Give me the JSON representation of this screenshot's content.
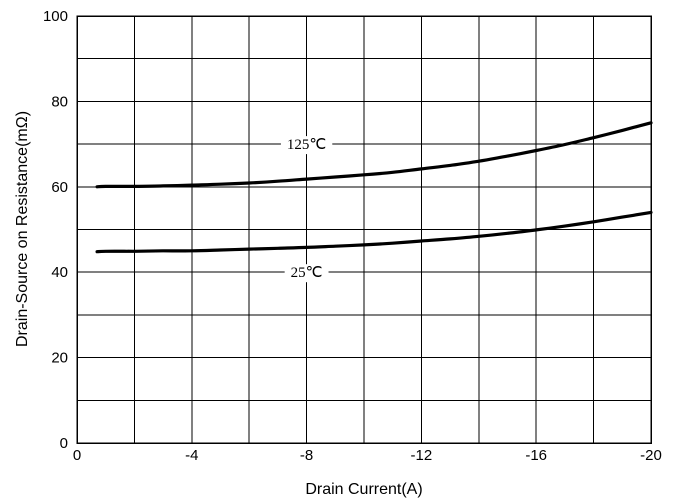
{
  "chart_data": {
    "type": "line",
    "xlabel": "Drain Current(A)",
    "ylabel": "Drain-Source on Resistance(mΩ)",
    "xlim": [
      0,
      -20
    ],
    "ylim": [
      0,
      100
    ],
    "x_ticks": [
      "0",
      "-4",
      "-8",
      "-12",
      "-16",
      "-20"
    ],
    "y_ticks": [
      "0",
      "20",
      "40",
      "60",
      "80",
      "100"
    ],
    "x_minor_step": 2,
    "y_minor_step": 10,
    "grid": true,
    "series": [
      {
        "name": "125℃",
        "x": [
          -0.7,
          -1,
          -2,
          -3,
          -4,
          -5,
          -6,
          -7,
          -8,
          -9,
          -10,
          -11,
          -12,
          -13,
          -14,
          -15,
          -16,
          -17,
          -18,
          -19,
          -20
        ],
        "y": [
          60,
          60.1,
          60.1,
          60.2,
          60.4,
          60.6,
          60.9,
          61.3,
          61.8,
          62.3,
          62.8,
          63.4,
          64.2,
          65.0,
          66.0,
          67.2,
          68.5,
          69.9,
          71.5,
          73.2,
          75.0
        ]
      },
      {
        "name": "25℃",
        "x": [
          -0.7,
          -1,
          -2,
          -3,
          -4,
          -5,
          -6,
          -7,
          -8,
          -9,
          -10,
          -11,
          -12,
          -13,
          -14,
          -15,
          -16,
          -17,
          -18,
          -19,
          -20
        ],
        "y": [
          44.8,
          44.9,
          44.9,
          45.0,
          45.0,
          45.2,
          45.4,
          45.6,
          45.8,
          46.1,
          46.4,
          46.8,
          47.3,
          47.8,
          48.4,
          49.1,
          49.9,
          50.8,
          51.8,
          52.9,
          54.0
        ]
      }
    ],
    "annotations": [
      {
        "text": "125℃",
        "x": -8,
        "y": 70
      },
      {
        "text": "25℃",
        "x": -8,
        "y": 40
      }
    ]
  }
}
